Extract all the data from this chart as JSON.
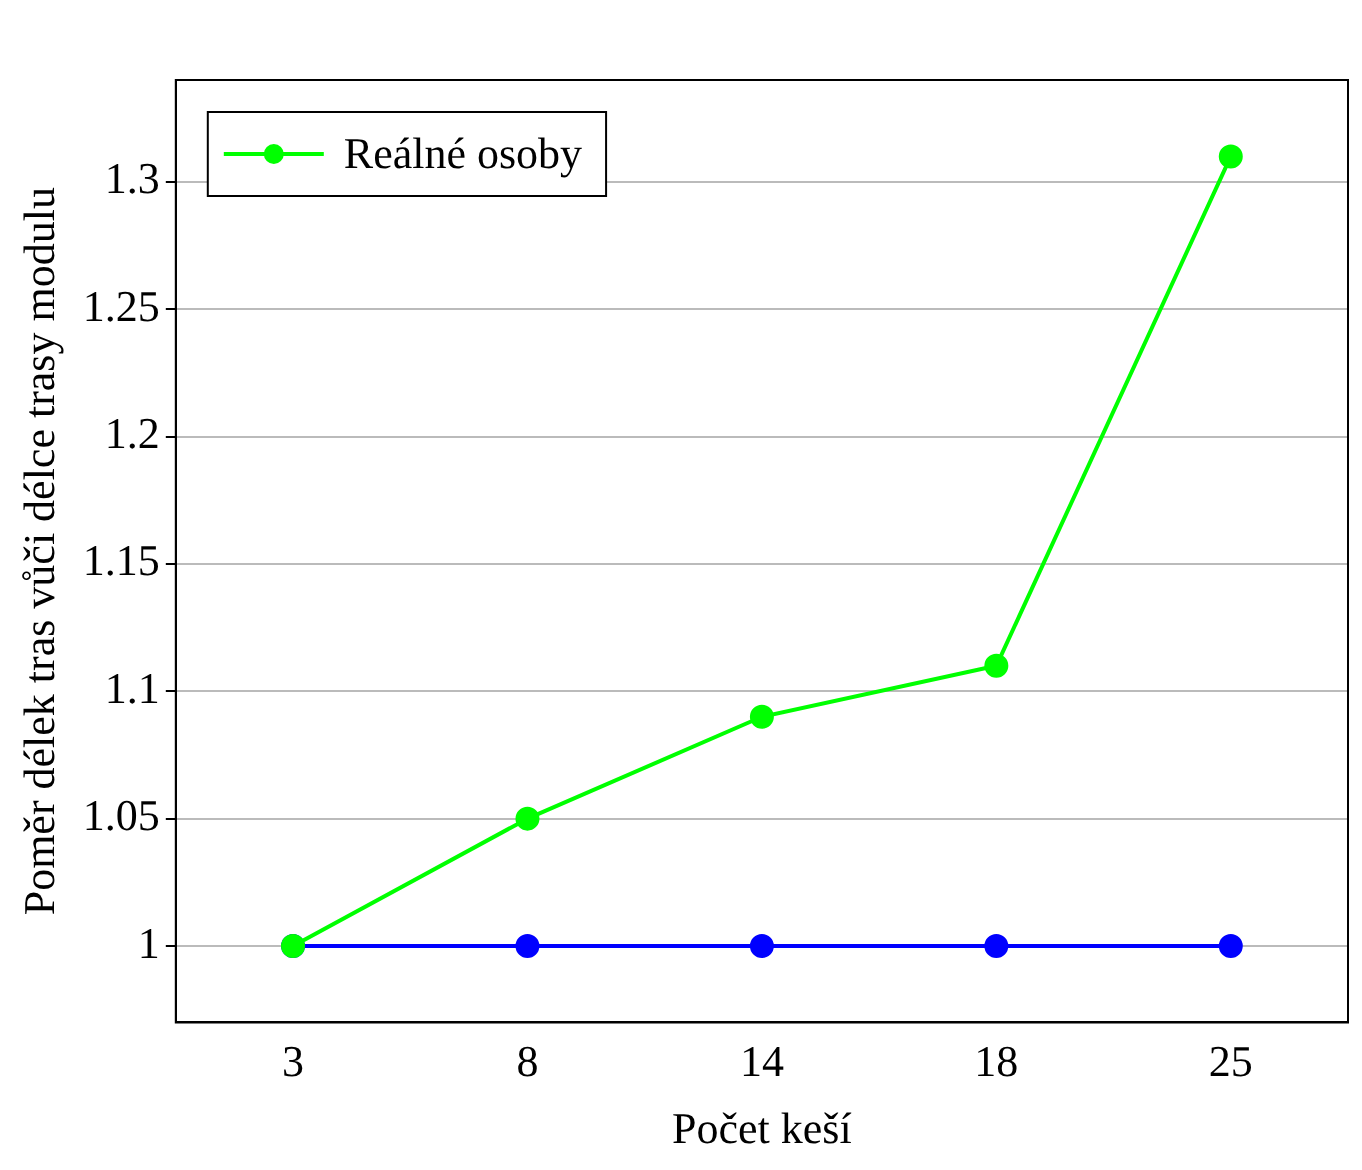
{
  "chart_data": {
    "type": "line",
    "xlabel": "Počet keší",
    "ylabel": "Poměr délek tras vůči délce trasy modulu",
    "categories": [
      "3",
      "8",
      "14",
      "18",
      "25"
    ],
    "series": [
      {
        "color": "#0000ff",
        "values": [
          1,
          1,
          1,
          1,
          1
        ]
      },
      {
        "name": "Reálné osoby",
        "color": "#00ff00",
        "values": [
          1,
          1.05,
          1.09,
          1.11,
          1.31
        ]
      }
    ],
    "ylim": [
      0.97,
      1.34
    ],
    "yticks": [
      1,
      1.05,
      1.1,
      1.15,
      1.2,
      1.25,
      1.3
    ],
    "grid": "y",
    "legend": "top left",
    "marker": "circle",
    "line_style": "solid"
  }
}
